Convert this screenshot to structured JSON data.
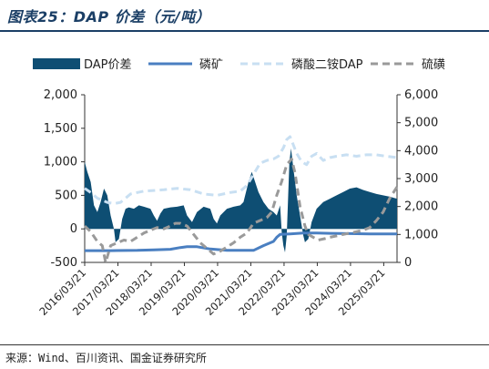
{
  "header": {
    "title": "图表25：DAP 价差（元/吨）"
  },
  "footer": {
    "source": "来源：Wind、百川资讯、国金证券研究所"
  },
  "chart_data": {
    "type": "area",
    "title": "图表25：DAP 价差（元/吨）",
    "x_labels": [
      "2016/03/21",
      "2017/03/21",
      "2018/03/21",
      "2019/03/21",
      "2020/03/21",
      "2021/03/21",
      "2022/03/21",
      "2023/03/21",
      "2024/03/21",
      "2025/03/21"
    ],
    "x_range": [
      2016.22,
      2025.62
    ],
    "y_left": {
      "range": [
        -500,
        2000
      ],
      "ticks": [
        "2,000",
        "1,500",
        "1,000",
        "500",
        "0",
        "-500"
      ]
    },
    "y_right": {
      "range": [
        0,
        6000
      ],
      "ticks": [
        "6,000",
        "5,000",
        "4,000",
        "3,000",
        "2,000",
        "1,000",
        "0"
      ]
    },
    "legend_position": "top",
    "grid": false,
    "series": [
      {
        "name": "DAP价差",
        "axis": "left",
        "style": "area",
        "color": "#0e4e73",
        "points": [
          [
            2016.22,
            1000
          ],
          [
            2016.3,
            850
          ],
          [
            2016.4,
            700
          ],
          [
            2016.5,
            350
          ],
          [
            2016.6,
            250
          ],
          [
            2016.7,
            400
          ],
          [
            2016.8,
            600
          ],
          [
            2016.9,
            500
          ],
          [
            2017.0,
            200
          ],
          [
            2017.1,
            0
          ],
          [
            2017.15,
            -200
          ],
          [
            2017.25,
            -150
          ],
          [
            2017.35,
            150
          ],
          [
            2017.45,
            300
          ],
          [
            2017.55,
            320
          ],
          [
            2017.7,
            300
          ],
          [
            2017.85,
            350
          ],
          [
            2018.0,
            330
          ],
          [
            2018.2,
            300
          ],
          [
            2018.3,
            200
          ],
          [
            2018.4,
            120
          ],
          [
            2018.5,
            230
          ],
          [
            2018.6,
            300
          ],
          [
            2018.8,
            320
          ],
          [
            2019.0,
            330
          ],
          [
            2019.2,
            350
          ],
          [
            2019.3,
            200
          ],
          [
            2019.45,
            100
          ],
          [
            2019.6,
            250
          ],
          [
            2019.8,
            330
          ],
          [
            2020.0,
            300
          ],
          [
            2020.1,
            150
          ],
          [
            2020.2,
            80
          ],
          [
            2020.3,
            200
          ],
          [
            2020.5,
            300
          ],
          [
            2020.7,
            330
          ],
          [
            2020.9,
            350
          ],
          [
            2021.0,
            400
          ],
          [
            2021.15,
            700
          ],
          [
            2021.25,
            850
          ],
          [
            2021.35,
            700
          ],
          [
            2021.45,
            550
          ],
          [
            2021.6,
            400
          ],
          [
            2021.75,
            300
          ],
          [
            2021.9,
            250
          ],
          [
            2022.0,
            200
          ],
          [
            2022.1,
            350
          ],
          [
            2022.15,
            -50
          ],
          [
            2022.2,
            -250
          ],
          [
            2022.25,
            -350
          ],
          [
            2022.3,
            -100
          ],
          [
            2022.38,
            1000
          ],
          [
            2022.43,
            1200
          ],
          [
            2022.5,
            900
          ],
          [
            2022.6,
            500
          ],
          [
            2022.7,
            200
          ],
          [
            2022.8,
            -100
          ],
          [
            2022.85,
            -200
          ],
          [
            2022.95,
            -150
          ],
          [
            2023.05,
            100
          ],
          [
            2023.2,
            300
          ],
          [
            2023.4,
            400
          ],
          [
            2023.6,
            450
          ],
          [
            2023.8,
            500
          ],
          [
            2024.0,
            550
          ],
          [
            2024.2,
            600
          ],
          [
            2024.4,
            620
          ],
          [
            2024.6,
            580
          ],
          [
            2024.8,
            550
          ],
          [
            2025.0,
            520
          ],
          [
            2025.2,
            500
          ],
          [
            2025.4,
            480
          ],
          [
            2025.62,
            450
          ]
        ]
      },
      {
        "name": "磷矿",
        "axis": "right",
        "style": "line",
        "color": "#4a7fc1",
        "points": [
          [
            2016.22,
            420
          ],
          [
            2017.0,
            420
          ],
          [
            2017.8,
            430
          ],
          [
            2018.3,
            450
          ],
          [
            2018.8,
            470
          ],
          [
            2019.1,
            530
          ],
          [
            2019.3,
            560
          ],
          [
            2019.6,
            560
          ],
          [
            2020.0,
            480
          ],
          [
            2020.5,
            430
          ],
          [
            2021.0,
            430
          ],
          [
            2021.3,
            430
          ],
          [
            2021.6,
            600
          ],
          [
            2021.9,
            750
          ],
          [
            2022.0,
            900
          ],
          [
            2022.1,
            1000
          ],
          [
            2022.4,
            1020
          ],
          [
            2022.8,
            1050
          ],
          [
            2023.2,
            1050
          ],
          [
            2023.6,
            1040
          ],
          [
            2024.2,
            1030
          ],
          [
            2024.8,
            1020
          ],
          [
            2025.62,
            1020
          ]
        ]
      },
      {
        "name": "磷酸二铵DAP",
        "axis": "right",
        "style": "dashed",
        "color": "#c8dff2",
        "points": [
          [
            2016.22,
            2650
          ],
          [
            2016.4,
            2500
          ],
          [
            2016.6,
            2300
          ],
          [
            2016.9,
            2150
          ],
          [
            2017.1,
            2100
          ],
          [
            2017.3,
            2150
          ],
          [
            2017.6,
            2450
          ],
          [
            2018.0,
            2550
          ],
          [
            2018.6,
            2600
          ],
          [
            2019.0,
            2650
          ],
          [
            2019.4,
            2600
          ],
          [
            2019.8,
            2450
          ],
          [
            2020.2,
            2400
          ],
          [
            2020.6,
            2500
          ],
          [
            2020.9,
            2550
          ],
          [
            2021.1,
            2750
          ],
          [
            2021.3,
            3150
          ],
          [
            2021.5,
            3550
          ],
          [
            2021.7,
            3650
          ],
          [
            2021.9,
            3700
          ],
          [
            2022.05,
            3800
          ],
          [
            2022.2,
            4100
          ],
          [
            2022.3,
            4400
          ],
          [
            2022.4,
            4500
          ],
          [
            2022.5,
            4200
          ],
          [
            2022.6,
            3900
          ],
          [
            2022.75,
            3600
          ],
          [
            2022.9,
            3500
          ],
          [
            2023.05,
            3800
          ],
          [
            2023.2,
            3900
          ],
          [
            2023.4,
            3650
          ],
          [
            2023.6,
            3750
          ],
          [
            2023.8,
            3800
          ],
          [
            2024.1,
            3850
          ],
          [
            2024.4,
            3800
          ],
          [
            2024.7,
            3850
          ],
          [
            2025.0,
            3850
          ],
          [
            2025.3,
            3800
          ],
          [
            2025.62,
            3750
          ]
        ]
      },
      {
        "name": "硫磺",
        "axis": "right",
        "style": "dashed",
        "color": "#9a9a9a",
        "points": [
          [
            2016.22,
            1300
          ],
          [
            2016.4,
            1100
          ],
          [
            2016.6,
            750
          ],
          [
            2016.75,
            600
          ],
          [
            2016.85,
            0
          ],
          [
            2017.0,
            600
          ],
          [
            2017.2,
            700
          ],
          [
            2017.4,
            800
          ],
          [
            2017.6,
            750
          ],
          [
            2017.8,
            900
          ],
          [
            2018.0,
            1050
          ],
          [
            2018.2,
            1150
          ],
          [
            2018.4,
            1250
          ],
          [
            2018.6,
            1200
          ],
          [
            2018.8,
            1300
          ],
          [
            2018.95,
            1400
          ],
          [
            2019.1,
            1400
          ],
          [
            2019.3,
            1300
          ],
          [
            2019.5,
            1000
          ],
          [
            2019.7,
            700
          ],
          [
            2019.9,
            500
          ],
          [
            2020.1,
            300
          ],
          [
            2020.3,
            400
          ],
          [
            2020.5,
            550
          ],
          [
            2020.7,
            700
          ],
          [
            2020.9,
            900
          ],
          [
            2021.1,
            1050
          ],
          [
            2021.3,
            1400
          ],
          [
            2021.5,
            1500
          ],
          [
            2021.7,
            1600
          ],
          [
            2021.85,
            1800
          ],
          [
            2022.0,
            2400
          ],
          [
            2022.15,
            2900
          ],
          [
            2022.3,
            3500
          ],
          [
            2022.45,
            3700
          ],
          [
            2022.55,
            3200
          ],
          [
            2022.7,
            2000
          ],
          [
            2022.85,
            1300
          ],
          [
            2022.95,
            1000
          ],
          [
            2023.1,
            900
          ],
          [
            2023.25,
            800
          ],
          [
            2023.45,
            850
          ],
          [
            2023.6,
            900
          ],
          [
            2023.8,
            950
          ],
          [
            2024.0,
            1000
          ],
          [
            2024.2,
            1050
          ],
          [
            2024.4,
            1100
          ],
          [
            2024.6,
            1150
          ],
          [
            2024.8,
            1250
          ],
          [
            2025.0,
            1500
          ],
          [
            2025.2,
            1800
          ],
          [
            2025.4,
            2300
          ],
          [
            2025.62,
            2700
          ]
        ]
      }
    ]
  }
}
